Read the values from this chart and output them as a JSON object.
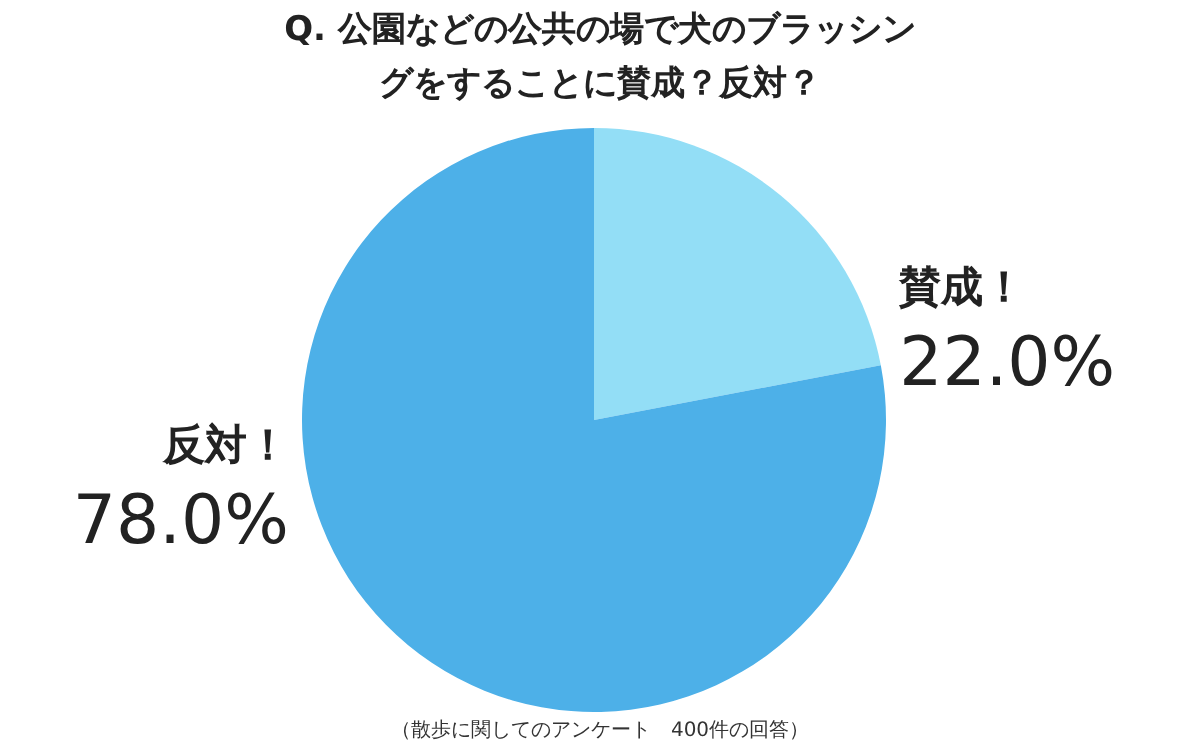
{
  "chart_data": {
    "type": "pie",
    "title": "Q.  公園などの公共の場で犬のブラッシングをすることに賛成？反対？",
    "categories": [
      "賛成！",
      "反対！"
    ],
    "values": [
      22.0,
      78.0
    ],
    "value_labels": [
      "22.0%",
      "78.0%"
    ],
    "colors": [
      "#93def6",
      "#4db0e8"
    ],
    "legend": false,
    "annotations": [
      "（散歩に関してのアンケート　400件の回答）"
    ]
  }
}
